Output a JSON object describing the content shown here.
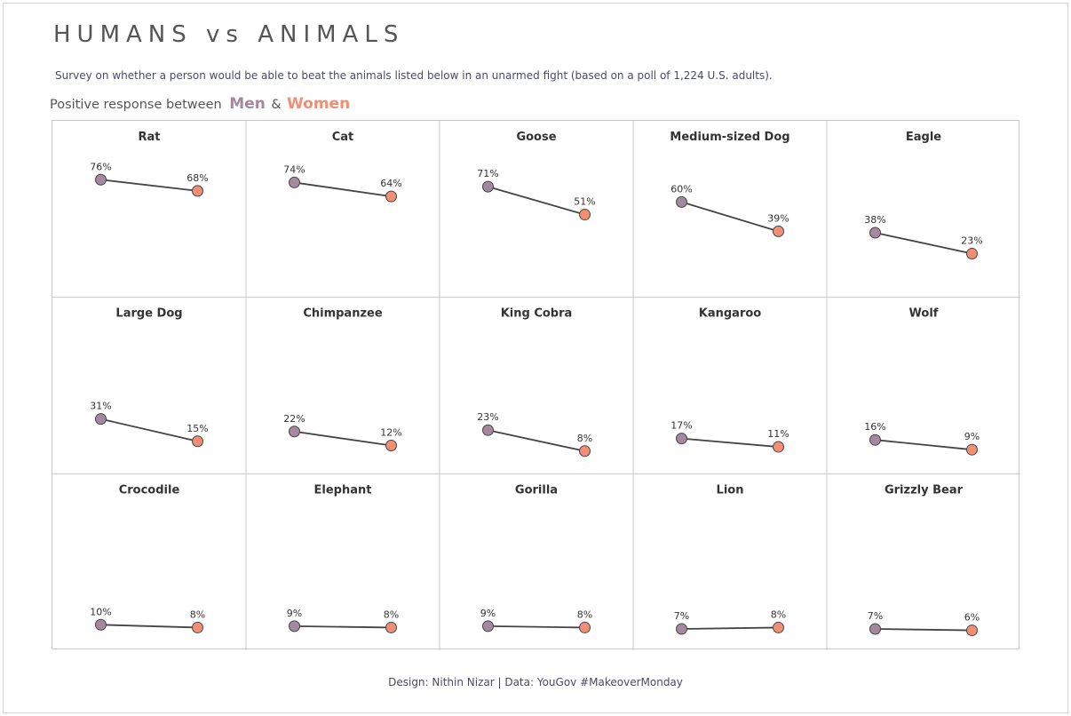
{
  "title": "HUMANS vs ANIMALS",
  "subtitle": "Survey on whether a person would be able to beat the animals listed below in an unarmed fight (based on a poll of 1,224 U.S. adults).",
  "legend": {
    "prefix": "Positive response between",
    "men_label": "Men",
    "amp": "&",
    "women_label": "Women"
  },
  "colors": {
    "men": "#a5889f",
    "women": "#f28e73",
    "line": "#444444",
    "grid": "#c8c8c8"
  },
  "footer": "Design: Nithin Nizar | Data: YouGov #MakeoverMonday",
  "chart_data": {
    "type": "line",
    "layout": "small-multiples slope chart",
    "series": [
      {
        "name": "Men"
      },
      {
        "name": "Women"
      }
    ],
    "ylim": [
      0,
      100
    ],
    "panels": [
      {
        "animal": "Rat",
        "men": 76,
        "women": 68
      },
      {
        "animal": "Cat",
        "men": 74,
        "women": 64
      },
      {
        "animal": "Goose",
        "men": 71,
        "women": 51
      },
      {
        "animal": "Medium-sized Dog",
        "men": 60,
        "women": 39
      },
      {
        "animal": "Eagle",
        "men": 38,
        "women": 23
      },
      {
        "animal": "Large Dog",
        "men": 31,
        "women": 15
      },
      {
        "animal": "Chimpanzee",
        "men": 22,
        "women": 12
      },
      {
        "animal": "King Cobra",
        "men": 23,
        "women": 8
      },
      {
        "animal": "Kangaroo",
        "men": 17,
        "women": 11
      },
      {
        "animal": "Wolf",
        "men": 16,
        "women": 9
      },
      {
        "animal": "Crocodile",
        "men": 10,
        "women": 8
      },
      {
        "animal": "Elephant",
        "men": 9,
        "women": 8
      },
      {
        "animal": "Gorilla",
        "men": 9,
        "women": 8
      },
      {
        "animal": "Lion",
        "men": 7,
        "women": 8
      },
      {
        "animal": "Grizzly Bear",
        "men": 7,
        "women": 6
      }
    ]
  }
}
